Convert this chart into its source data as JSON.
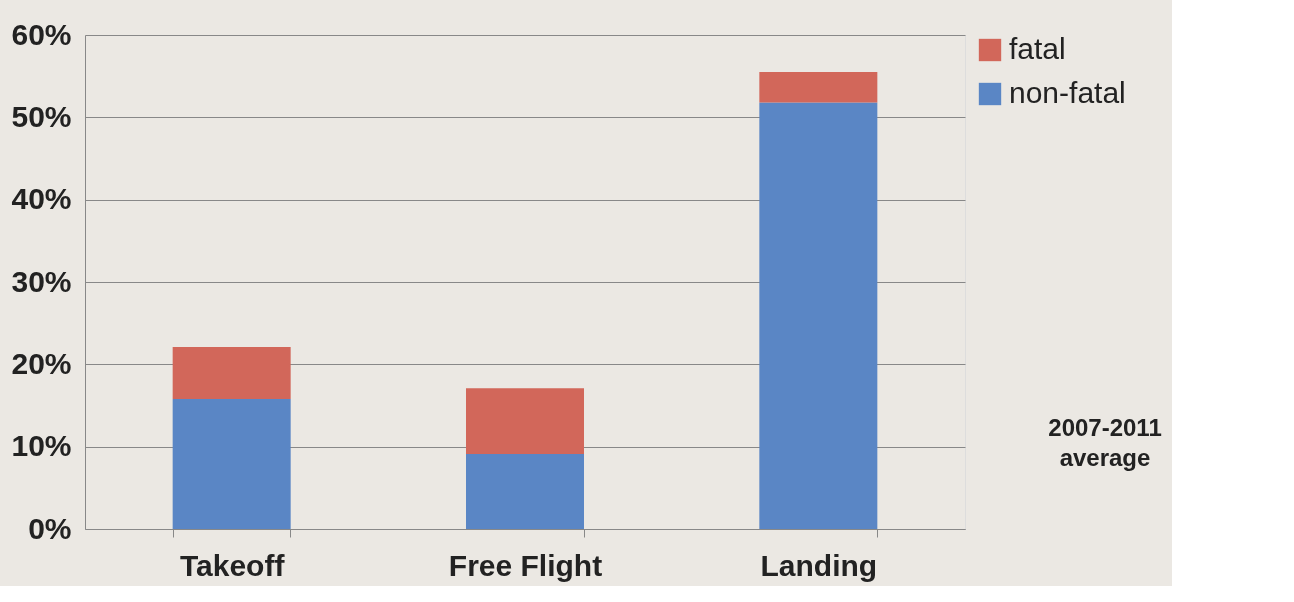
{
  "chart_data": {
    "type": "bar",
    "stacked": true,
    "categories": [
      "Takeoff",
      "Free Flight",
      "Landing"
    ],
    "series": [
      {
        "name": "non-fatal",
        "color": "#5a86c5",
        "values": [
          15.8,
          9.1,
          51.8
        ]
      },
      {
        "name": "fatal",
        "color": "#d2675a",
        "values": [
          6.3,
          8.0,
          3.7
        ]
      }
    ],
    "ylim": [
      0,
      60
    ],
    "yticks": [
      {
        "value": 0,
        "label": "0%"
      },
      {
        "value": 10,
        "label": "10%"
      },
      {
        "value": 20,
        "label": "20%"
      },
      {
        "value": 30,
        "label": "30%"
      },
      {
        "value": 40,
        "label": "40%"
      },
      {
        "value": 50,
        "label": "50%"
      },
      {
        "value": 60,
        "label": "60%"
      }
    ],
    "grid": "y",
    "legend": "right",
    "annotations": [
      "2007-2011\naverage"
    ]
  }
}
